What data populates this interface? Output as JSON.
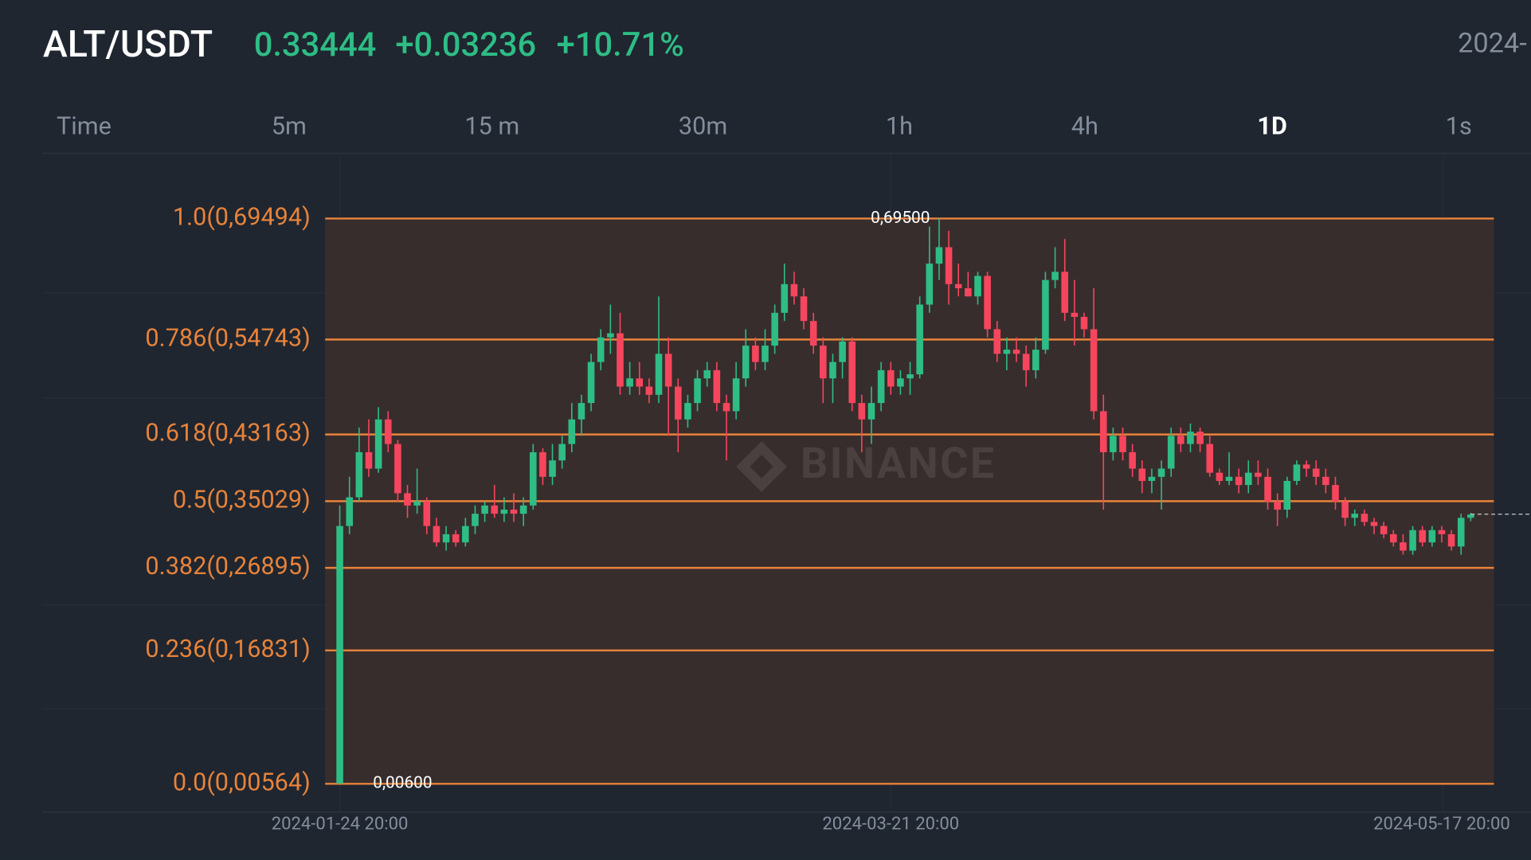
{
  "header": {
    "pair": "ALT/USDT",
    "price": "0.33444",
    "change": "+0.03236",
    "change_pct": "+10.71%",
    "date": "2024-"
  },
  "tabs": [
    "Time",
    "5m",
    "15 m",
    "30m",
    "1h",
    "4h",
    "1D",
    "1s"
  ],
  "active_tab": "1D",
  "chart_data": {
    "type": "candlestick",
    "watermark": "BINANCE",
    "categories": [
      "2024-01-24 20:00",
      null,
      null,
      null,
      null,
      null,
      null,
      null,
      null,
      null,
      null,
      null,
      null,
      null,
      null,
      null,
      null,
      null,
      null,
      null,
      null,
      null,
      null,
      null,
      null,
      null,
      null,
      null,
      null,
      null,
      null,
      null,
      null,
      null,
      null,
      null,
      null,
      null,
      null,
      null,
      null,
      null,
      null,
      null,
      null,
      null,
      null,
      null,
      null,
      null,
      null,
      null,
      null,
      null,
      null,
      null,
      null,
      "2024-03-21 20:00",
      null,
      null,
      null,
      null,
      null,
      null,
      null,
      null,
      null,
      null,
      null,
      null,
      null,
      null,
      null,
      null,
      null,
      null,
      null,
      null,
      null,
      null,
      null,
      null,
      null,
      null,
      null,
      null,
      null,
      null,
      null,
      null,
      null,
      null,
      null,
      null,
      null,
      null,
      null,
      null,
      null,
      null,
      null,
      null,
      null,
      null,
      null,
      null,
      null,
      null,
      null,
      null,
      null,
      null,
      null,
      null,
      "2024-05-17 20:00",
      null,
      null,
      null
    ],
    "ohlc": [
      [
        0.006,
        0.345,
        0.006,
        0.32
      ],
      [
        0.32,
        0.38,
        0.31,
        0.355
      ],
      [
        0.355,
        0.44,
        0.35,
        0.41
      ],
      [
        0.41,
        0.45,
        0.38,
        0.39
      ],
      [
        0.39,
        0.465,
        0.385,
        0.45
      ],
      [
        0.45,
        0.46,
        0.41,
        0.42
      ],
      [
        0.42,
        0.425,
        0.35,
        0.36
      ],
      [
        0.36,
        0.37,
        0.33,
        0.345
      ],
      [
        0.345,
        0.39,
        0.335,
        0.35
      ],
      [
        0.35,
        0.355,
        0.31,
        0.32
      ],
      [
        0.32,
        0.33,
        0.295,
        0.3
      ],
      [
        0.3,
        0.32,
        0.29,
        0.31
      ],
      [
        0.31,
        0.315,
        0.295,
        0.3
      ],
      [
        0.3,
        0.33,
        0.295,
        0.32
      ],
      [
        0.32,
        0.345,
        0.31,
        0.335
      ],
      [
        0.335,
        0.35,
        0.325,
        0.345
      ],
      [
        0.345,
        0.37,
        0.33,
        0.335
      ],
      [
        0.335,
        0.355,
        0.325,
        0.34
      ],
      [
        0.34,
        0.36,
        0.325,
        0.335
      ],
      [
        0.335,
        0.355,
        0.32,
        0.345
      ],
      [
        0.345,
        0.42,
        0.34,
        0.41
      ],
      [
        0.41,
        0.415,
        0.37,
        0.38
      ],
      [
        0.38,
        0.42,
        0.37,
        0.4
      ],
      [
        0.4,
        0.43,
        0.39,
        0.42
      ],
      [
        0.42,
        0.47,
        0.41,
        0.45
      ],
      [
        0.45,
        0.48,
        0.43,
        0.47
      ],
      [
        0.47,
        0.53,
        0.46,
        0.52
      ],
      [
        0.52,
        0.56,
        0.51,
        0.55
      ],
      [
        0.55,
        0.59,
        0.53,
        0.555
      ],
      [
        0.555,
        0.58,
        0.48,
        0.49
      ],
      [
        0.49,
        0.52,
        0.48,
        0.5
      ],
      [
        0.5,
        0.52,
        0.48,
        0.49
      ],
      [
        0.49,
        0.5,
        0.47,
        0.48
      ],
      [
        0.48,
        0.6,
        0.47,
        0.53
      ],
      [
        0.53,
        0.55,
        0.43,
        0.49
      ],
      [
        0.49,
        0.5,
        0.41,
        0.45
      ],
      [
        0.45,
        0.48,
        0.44,
        0.47
      ],
      [
        0.47,
        0.51,
        0.46,
        0.5
      ],
      [
        0.5,
        0.52,
        0.49,
        0.51
      ],
      [
        0.51,
        0.52,
        0.46,
        0.47
      ],
      [
        0.47,
        0.48,
        0.4,
        0.46
      ],
      [
        0.46,
        0.52,
        0.45,
        0.5
      ],
      [
        0.5,
        0.56,
        0.49,
        0.54
      ],
      [
        0.54,
        0.55,
        0.51,
        0.52
      ],
      [
        0.52,
        0.56,
        0.51,
        0.54
      ],
      [
        0.54,
        0.59,
        0.53,
        0.58
      ],
      [
        0.58,
        0.64,
        0.57,
        0.615
      ],
      [
        0.615,
        0.63,
        0.59,
        0.6
      ],
      [
        0.6,
        0.61,
        0.56,
        0.57
      ],
      [
        0.57,
        0.58,
        0.53,
        0.54
      ],
      [
        0.54,
        0.55,
        0.47,
        0.5
      ],
      [
        0.5,
        0.53,
        0.47,
        0.52
      ],
      [
        0.52,
        0.55,
        0.5,
        0.545
      ],
      [
        0.545,
        0.55,
        0.46,
        0.47
      ],
      [
        0.47,
        0.48,
        0.41,
        0.45
      ],
      [
        0.45,
        0.49,
        0.42,
        0.47
      ],
      [
        0.47,
        0.52,
        0.46,
        0.51
      ],
      [
        0.51,
        0.52,
        0.48,
        0.49
      ],
      [
        0.49,
        0.51,
        0.48,
        0.5
      ],
      [
        0.5,
        0.52,
        0.48,
        0.505
      ],
      [
        0.505,
        0.6,
        0.5,
        0.59
      ],
      [
        0.59,
        0.685,
        0.58,
        0.64
      ],
      [
        0.64,
        0.695,
        0.62,
        0.66
      ],
      [
        0.66,
        0.68,
        0.59,
        0.615
      ],
      [
        0.615,
        0.64,
        0.6,
        0.61
      ],
      [
        0.61,
        0.63,
        0.6,
        0.6
      ],
      [
        0.6,
        0.63,
        0.59,
        0.625
      ],
      [
        0.625,
        0.63,
        0.55,
        0.56
      ],
      [
        0.56,
        0.57,
        0.52,
        0.53
      ],
      [
        0.53,
        0.55,
        0.51,
        0.535
      ],
      [
        0.535,
        0.55,
        0.52,
        0.53
      ],
      [
        0.53,
        0.54,
        0.49,
        0.51
      ],
      [
        0.51,
        0.55,
        0.5,
        0.535
      ],
      [
        0.535,
        0.63,
        0.53,
        0.62
      ],
      [
        0.62,
        0.66,
        0.61,
        0.63
      ],
      [
        0.63,
        0.67,
        0.57,
        0.58
      ],
      [
        0.58,
        0.62,
        0.54,
        0.575
      ],
      [
        0.575,
        0.58,
        0.55,
        0.56
      ],
      [
        0.56,
        0.61,
        0.45,
        0.46
      ],
      [
        0.46,
        0.48,
        0.34,
        0.41
      ],
      [
        0.41,
        0.44,
        0.4,
        0.43
      ],
      [
        0.43,
        0.44,
        0.4,
        0.41
      ],
      [
        0.41,
        0.42,
        0.38,
        0.39
      ],
      [
        0.39,
        0.4,
        0.36,
        0.375
      ],
      [
        0.375,
        0.39,
        0.36,
        0.38
      ],
      [
        0.38,
        0.4,
        0.34,
        0.39
      ],
      [
        0.39,
        0.44,
        0.38,
        0.43
      ],
      [
        0.43,
        0.44,
        0.41,
        0.42
      ],
      [
        0.42,
        0.445,
        0.41,
        0.435
      ],
      [
        0.435,
        0.44,
        0.41,
        0.42
      ],
      [
        0.42,
        0.43,
        0.38,
        0.385
      ],
      [
        0.385,
        0.39,
        0.37,
        0.375
      ],
      [
        0.375,
        0.41,
        0.37,
        0.38
      ],
      [
        0.38,
        0.39,
        0.36,
        0.37
      ],
      [
        0.37,
        0.4,
        0.36,
        0.385
      ],
      [
        0.385,
        0.4,
        0.37,
        0.38
      ],
      [
        0.38,
        0.39,
        0.34,
        0.35
      ],
      [
        0.35,
        0.36,
        0.32,
        0.34
      ],
      [
        0.34,
        0.38,
        0.33,
        0.375
      ],
      [
        0.375,
        0.4,
        0.37,
        0.395
      ],
      [
        0.395,
        0.4,
        0.38,
        0.39
      ],
      [
        0.39,
        0.4,
        0.37,
        0.38
      ],
      [
        0.38,
        0.39,
        0.36,
        0.37
      ],
      [
        0.37,
        0.38,
        0.34,
        0.35
      ],
      [
        0.35,
        0.355,
        0.32,
        0.33
      ],
      [
        0.33,
        0.34,
        0.32,
        0.335
      ],
      [
        0.335,
        0.34,
        0.32,
        0.325
      ],
      [
        0.325,
        0.33,
        0.31,
        0.32
      ],
      [
        0.32,
        0.325,
        0.305,
        0.31
      ],
      [
        0.31,
        0.315,
        0.295,
        0.3
      ],
      [
        0.3,
        0.31,
        0.285,
        0.29
      ],
      [
        0.29,
        0.32,
        0.285,
        0.315
      ],
      [
        0.315,
        0.32,
        0.295,
        0.3
      ],
      [
        0.3,
        0.32,
        0.295,
        0.315
      ],
      [
        0.315,
        0.32,
        0.3,
        0.31
      ],
      [
        0.31,
        0.315,
        0.29,
        0.295
      ],
      [
        0.295,
        0.335,
        0.285,
        0.33
      ],
      [
        0.33,
        0.336,
        0.326,
        0.334
      ]
    ],
    "up_color": "#2ebd85",
    "down_color": "#f6465d",
    "fib_color": "#e8833a",
    "ylim": [
      -0.0289,
      0.765
    ],
    "yticks": [
      {
        "value": 0.69494,
        "label": "1.0(0,69494)"
      },
      {
        "value": 0.54743,
        "label": "0.786(0,54743)"
      },
      {
        "value": 0.43163,
        "label": "0.618(0,43163)"
      },
      {
        "value": 0.35029,
        "label": "0.5(0,35029)"
      },
      {
        "value": 0.26895,
        "label": "0.382(0,26895)"
      },
      {
        "value": 0.16831,
        "label": "0.236(0,16831)"
      },
      {
        "value": 0.00564,
        "label": "0.0(0,00564)"
      }
    ],
    "annotations": [
      {
        "value": 0.695,
        "label": "0,69500",
        "index": 62
      },
      {
        "value": 0.006,
        "label": "0,00600",
        "index": 0
      }
    ],
    "last_price": 0.33444
  }
}
